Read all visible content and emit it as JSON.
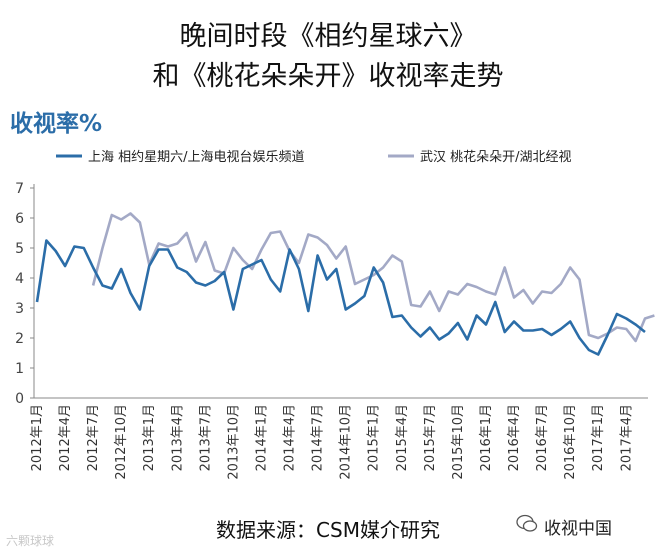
{
  "header": {
    "title_line1": "晚间时段《相约星球六》",
    "title_line2": "和《桃花朵朵开》收视率走势"
  },
  "footer": {
    "source": "数据来源：CSM媒介研究",
    "watermark_left": "六颗球球",
    "watermark_right": "收视中国"
  },
  "colors": {
    "series1": "#2b6da8",
    "series2": "#a3a9c6",
    "ylabel": "#2b6da8"
  },
  "chart_data": {
    "type": "line",
    "ylabel": "收视率%",
    "xlabel": "",
    "ylim": [
      0,
      7
    ],
    "yticks": [
      0,
      1,
      2,
      3,
      4,
      5,
      6,
      7
    ],
    "grid": false,
    "legend_position": "top",
    "xtick_labels": [
      "2012年1月",
      "2012年4月",
      "2012年7月",
      "2012年10月",
      "2013年1月",
      "2013年4月",
      "2013年7月",
      "2013年10月",
      "2014年1月",
      "2014年4月",
      "2014年7月",
      "2014年10月",
      "2015年1月",
      "2015年4月",
      "2015年7月",
      "2015年10月",
      "2016年1月",
      "2016年4月",
      "2016年7月",
      "2016年10月",
      "2017年1月",
      "2017年4月"
    ],
    "series": [
      {
        "name": "上海 相约星期六/上海电视台娱乐频道",
        "start_month": "2012年1月",
        "values": [
          3.2,
          5.25,
          4.9,
          4.4,
          5.05,
          5.0,
          4.35,
          3.75,
          3.65,
          4.3,
          3.5,
          2.95,
          4.4,
          4.95,
          4.95,
          4.35,
          4.2,
          3.85,
          3.75,
          3.9,
          4.2,
          2.95,
          4.3,
          4.45,
          4.6,
          3.95,
          3.55,
          4.95,
          4.3,
          2.9,
          4.75,
          3.95,
          4.3,
          2.95,
          3.15,
          3.4,
          4.35,
          3.85,
          2.7,
          2.75,
          2.35,
          2.05,
          2.35,
          1.95,
          2.15,
          2.5,
          1.95,
          2.75,
          2.45,
          3.2,
          2.2,
          2.55,
          2.25,
          2.25,
          2.3,
          2.1,
          2.3,
          2.55,
          2.0,
          1.6,
          1.45,
          2.1,
          2.8,
          2.65,
          2.45,
          2.2
        ]
      },
      {
        "name": "武汉 桃花朵朵开/湖北经视",
        "start_month": "2012年7月",
        "values": [
          3.75,
          5.0,
          6.1,
          5.95,
          6.15,
          5.85,
          4.45,
          5.15,
          5.05,
          5.15,
          5.5,
          4.55,
          5.2,
          4.25,
          4.15,
          5.0,
          4.6,
          4.3,
          4.95,
          5.5,
          5.55,
          4.9,
          4.5,
          5.45,
          5.35,
          5.1,
          4.65,
          5.05,
          3.8,
          3.95,
          4.1,
          4.35,
          4.75,
          4.55,
          3.1,
          3.05,
          3.55,
          2.9,
          3.55,
          3.45,
          3.8,
          3.7,
          3.55,
          3.45,
          4.35,
          3.35,
          3.6,
          3.15,
          3.55,
          3.5,
          3.8,
          4.35,
          3.95,
          2.1,
          2.0,
          2.15,
          2.35,
          2.3,
          1.9,
          2.65,
          2.75
        ]
      }
    ]
  }
}
